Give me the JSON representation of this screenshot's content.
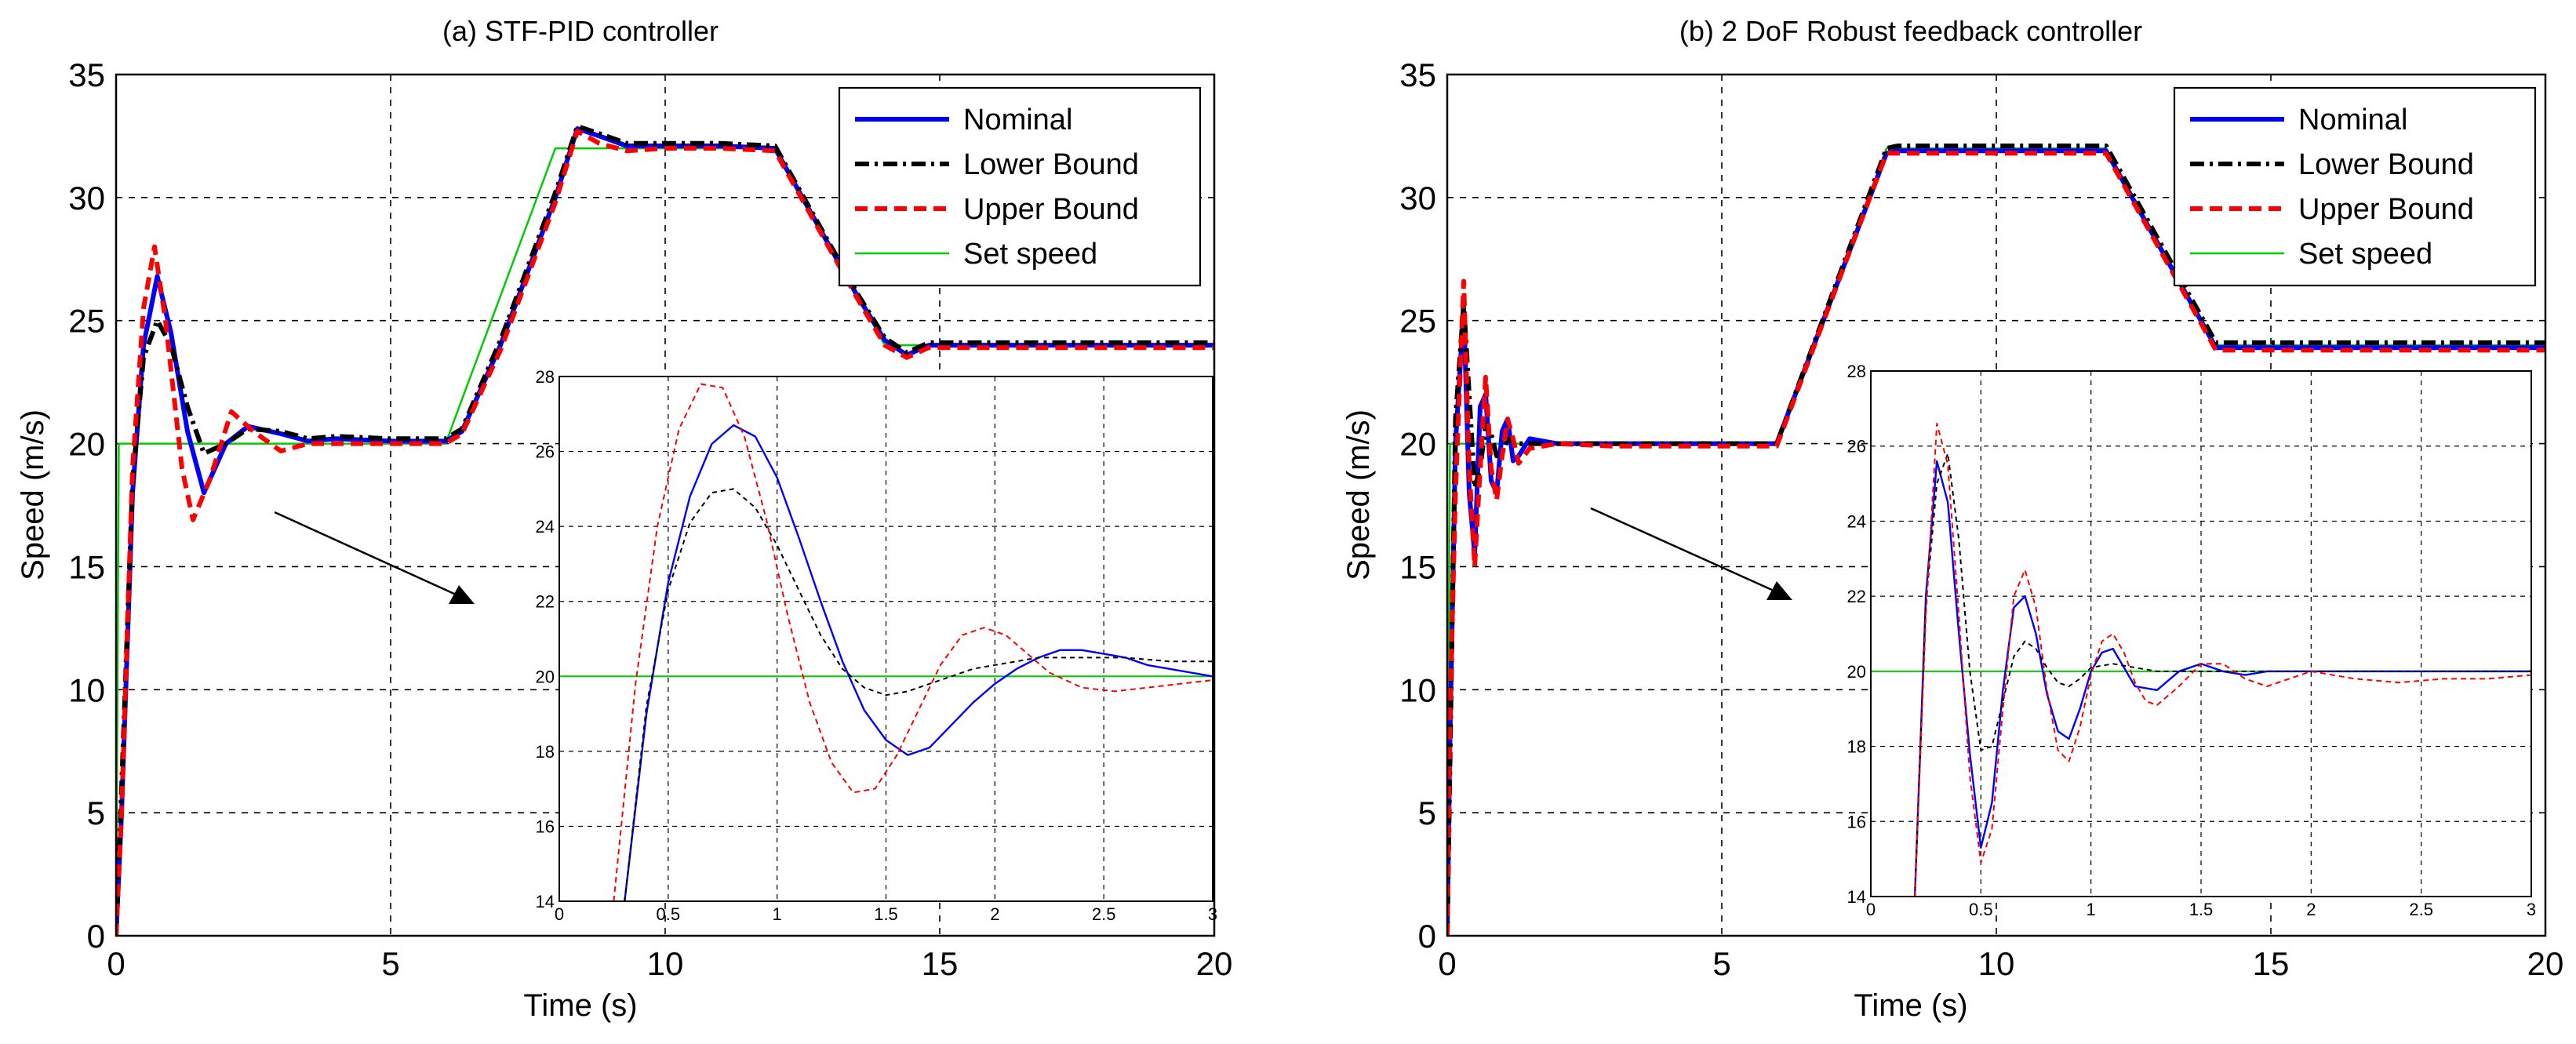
{
  "colors": {
    "Nominal": "#0000ff",
    "Lower Bound": "#000000",
    "Upper Bound": "#ff0000",
    "Set speed": "#00cc00"
  },
  "chart_data": [
    {
      "type": "line",
      "title": "(a) STF-PID controller",
      "xlabel": "Time (s)",
      "ylabel": "Speed (m/s)",
      "xlim": [
        0,
        20
      ],
      "ylim": [
        0,
        35
      ],
      "xticks": [
        0,
        5,
        10,
        15,
        20
      ],
      "yticks": [
        0,
        5,
        10,
        15,
        20,
        25,
        30,
        35
      ],
      "grid": true,
      "legend": "top-right",
      "legend_entries": [
        "Nominal",
        "Lower Bound",
        "Upper Bound",
        "Set speed"
      ],
      "series": [
        {
          "name": "Set speed",
          "x": [
            0,
            0.05,
            6,
            8,
            12,
            14,
            20
          ],
          "y": [
            0,
            20,
            20,
            32,
            32,
            24,
            24
          ]
        },
        {
          "name": "Nominal",
          "x": [
            0,
            0.1,
            0.3,
            0.5,
            0.75,
            1.0,
            1.3,
            1.6,
            2.0,
            2.4,
            3.0,
            3.5,
            4,
            5,
            6,
            6.3,
            7,
            8,
            8.4,
            8.8,
            9.3,
            10,
            11,
            12,
            12.5,
            13,
            13.5,
            14,
            14.4,
            14.8,
            15.2,
            16,
            17,
            18,
            20
          ],
          "y": [
            0,
            5,
            18,
            24,
            26.8,
            24.5,
            20.5,
            18,
            20,
            20.7,
            20.4,
            20.1,
            20.2,
            20.1,
            20.1,
            20.5,
            24,
            30,
            32.8,
            32.5,
            32.1,
            32.1,
            32.1,
            32.0,
            30,
            28,
            26,
            24.2,
            23.6,
            24.0,
            24.0,
            24.0,
            24.0,
            24.0,
            24.0
          ]
        },
        {
          "name": "Lower Bound",
          "x": [
            0,
            0.1,
            0.3,
            0.5,
            0.75,
            1.0,
            1.3,
            1.6,
            2.0,
            2.4,
            3.0,
            3.5,
            4,
            5,
            6,
            6.3,
            7,
            8,
            8.4,
            8.8,
            9.3,
            10,
            11,
            12,
            12.5,
            13,
            13.5,
            14,
            14.4,
            14.8,
            15.2,
            16,
            17,
            18,
            20
          ],
          "y": [
            0,
            6,
            18.5,
            23.5,
            25.0,
            24.0,
            21.5,
            19.6,
            20.0,
            20.6,
            20.5,
            20.2,
            20.3,
            20.2,
            20.2,
            20.6,
            24.2,
            30.2,
            32.9,
            32.6,
            32.2,
            32.2,
            32.2,
            32.1,
            30.1,
            28.1,
            26.1,
            24.3,
            23.7,
            24.1,
            24.1,
            24.1,
            24.1,
            24.1,
            24.1
          ]
        },
        {
          "name": "Upper Bound",
          "x": [
            0,
            0.1,
            0.3,
            0.5,
            0.7,
            0.9,
            1.2,
            1.4,
            1.7,
            2.1,
            2.5,
            3.0,
            3.5,
            4,
            5,
            6,
            6.3,
            7,
            8,
            8.4,
            8.8,
            9.3,
            10,
            11,
            12,
            12.5,
            13,
            13.5,
            14,
            14.4,
            14.8,
            15.2,
            16,
            17,
            18,
            20
          ],
          "y": [
            0,
            5,
            19,
            25.5,
            28.0,
            25.0,
            19.0,
            16.9,
            18.5,
            21.3,
            20.5,
            19.7,
            20.0,
            20.0,
            20.0,
            20.0,
            20.4,
            23.8,
            29.8,
            32.7,
            32.2,
            31.9,
            32.0,
            32.0,
            31.9,
            29.9,
            27.9,
            25.9,
            24.0,
            23.5,
            23.9,
            23.9,
            23.9,
            23.9,
            23.9,
            23.9
          ]
        }
      ],
      "inset": {
        "xlim": [
          0,
          3
        ],
        "ylim": [
          14,
          28
        ],
        "xticks": [
          "0",
          "0.5",
          "1",
          "1.5",
          "2",
          "2.5",
          "3"
        ],
        "yticks": [
          "14",
          "16",
          "18",
          "20",
          "22",
          "24",
          "26",
          "28"
        ],
        "series": [
          {
            "name": "Set speed",
            "x": [
              0,
              3
            ],
            "y": [
              20,
              20
            ]
          },
          {
            "name": "Nominal",
            "x": [
              0.3,
              0.4,
              0.5,
              0.6,
              0.7,
              0.8,
              0.9,
              1.0,
              1.1,
              1.2,
              1.3,
              1.4,
              1.5,
              1.6,
              1.7,
              1.8,
              1.9,
              2.0,
              2.1,
              2.2,
              2.3,
              2.4,
              2.5,
              2.6,
              2.7,
              2.8,
              2.9,
              3.0
            ],
            "y": [
              14,
              19,
              22.5,
              24.8,
              26.2,
              26.7,
              26.4,
              25.3,
              23.7,
              22.0,
              20.4,
              19.1,
              18.3,
              17.9,
              18.1,
              18.7,
              19.3,
              19.8,
              20.2,
              20.5,
              20.7,
              20.7,
              20.6,
              20.5,
              20.3,
              20.2,
              20.1,
              20.0
            ]
          },
          {
            "name": "Lower Bound",
            "x": [
              0.3,
              0.4,
              0.5,
              0.6,
              0.7,
              0.8,
              0.9,
              1.0,
              1.1,
              1.2,
              1.3,
              1.4,
              1.5,
              1.6,
              1.7,
              1.8,
              1.9,
              2.0,
              2.2,
              2.4,
              2.6,
              2.8,
              3.0
            ],
            "y": [
              14,
              19.2,
              22.3,
              24.1,
              24.9,
              25.0,
              24.5,
              23.5,
              22.3,
              21.1,
              20.2,
              19.7,
              19.5,
              19.6,
              19.8,
              20.0,
              20.2,
              20.3,
              20.5,
              20.5,
              20.5,
              20.4,
              20.4
            ]
          },
          {
            "name": "Upper Bound",
            "x": [
              0.25,
              0.35,
              0.45,
              0.55,
              0.65,
              0.75,
              0.85,
              0.95,
              1.05,
              1.15,
              1.25,
              1.35,
              1.45,
              1.55,
              1.65,
              1.75,
              1.85,
              1.95,
              2.05,
              2.15,
              2.25,
              2.4,
              2.55,
              2.7,
              2.85,
              3.0
            ],
            "y": [
              14,
              19.8,
              24.0,
              26.6,
              27.8,
              27.7,
              26.4,
              24.2,
              21.6,
              19.3,
              17.7,
              16.9,
              17.0,
              17.9,
              19.1,
              20.3,
              21.1,
              21.3,
              21.1,
              20.6,
              20.1,
              19.7,
              19.6,
              19.7,
              19.8,
              19.9
            ]
          }
        ]
      }
    },
    {
      "type": "line",
      "title": "(b) 2 DoF Robust feedback controller",
      "xlabel": "Time (s)",
      "ylabel": "Speed (m/s)",
      "xlim": [
        0,
        20
      ],
      "ylim": [
        0,
        35
      ],
      "xticks": [
        0,
        5,
        10,
        15,
        20
      ],
      "yticks": [
        0,
        5,
        10,
        15,
        20,
        25,
        30,
        35
      ],
      "grid": true,
      "legend": "top-right",
      "legend_entries": [
        "Nominal",
        "Lower Bound",
        "Upper Bound",
        "Set speed"
      ],
      "series": [
        {
          "name": "Set speed",
          "x": [
            0,
            0.05,
            6,
            8,
            12,
            14,
            20
          ],
          "y": [
            0,
            20,
            20,
            32,
            32,
            24,
            24
          ]
        },
        {
          "name": "Nominal",
          "x": [
            0,
            0.05,
            0.15,
            0.3,
            0.4,
            0.5,
            0.6,
            0.7,
            0.8,
            0.9,
            1.0,
            1.1,
            1.2,
            1.3,
            1.5,
            2,
            3,
            4,
            5,
            6,
            8,
            8.2,
            12,
            14,
            20
          ],
          "y": [
            0,
            8,
            20,
            25.5,
            18,
            15.5,
            21.5,
            22,
            18.5,
            18,
            20.5,
            21,
            19.3,
            19.5,
            20.2,
            20.0,
            20.0,
            20.0,
            20.0,
            20.0,
            31.8,
            31.9,
            31.9,
            23.9,
            23.9
          ]
        },
        {
          "name": "Lower Bound",
          "x": [
            0,
            0.05,
            0.15,
            0.3,
            0.4,
            0.5,
            0.6,
            0.7,
            0.8,
            0.9,
            1.0,
            1.1,
            1.2,
            1.3,
            1.5,
            2,
            3,
            4,
            5,
            6,
            8,
            8.2,
            12,
            14,
            20
          ],
          "y": [
            0,
            7,
            21,
            25.7,
            22,
            18.2,
            19.0,
            20.8,
            20.4,
            19.5,
            19.6,
            20.2,
            20.1,
            20.0,
            20.0,
            20.0,
            20.0,
            20.0,
            20.0,
            20.0,
            32.0,
            32.1,
            32.1,
            24.1,
            24.1
          ]
        },
        {
          "name": "Upper Bound",
          "x": [
            0,
            0.05,
            0.15,
            0.3,
            0.4,
            0.5,
            0.6,
            0.7,
            0.8,
            0.9,
            1.0,
            1.1,
            1.2,
            1.3,
            1.5,
            2,
            3,
            4,
            5,
            6,
            8,
            8.2,
            12,
            14,
            20
          ],
          "y": [
            0,
            9,
            18,
            26.6,
            19,
            15.0,
            19.0,
            22.7,
            19,
            17.7,
            19.5,
            21.0,
            20.2,
            19.2,
            19.8,
            20.0,
            19.9,
            19.9,
            19.9,
            19.9,
            31.8,
            31.8,
            31.8,
            23.8,
            23.8
          ]
        }
      ],
      "inset": {
        "xlim": [
          0,
          3
        ],
        "ylim": [
          14,
          28
        ],
        "xticks": [
          "0",
          "0.5",
          "1",
          "1.5",
          "2",
          "2.5",
          "3"
        ],
        "yticks": [
          "14",
          "16",
          "18",
          "20",
          "22",
          "24",
          "26",
          "28"
        ],
        "series": [
          {
            "name": "Set speed",
            "x": [
              0,
              3
            ],
            "y": [
              20,
              20
            ]
          },
          {
            "name": "Nominal",
            "x": [
              0.2,
              0.25,
              0.3,
              0.35,
              0.4,
              0.45,
              0.5,
              0.55,
              0.6,
              0.65,
              0.7,
              0.75,
              0.8,
              0.85,
              0.9,
              0.95,
              1.0,
              1.05,
              1.1,
              1.15,
              1.2,
              1.3,
              1.4,
              1.5,
              1.6,
              1.7,
              1.8,
              1.9,
              2.0,
              2.2,
              2.4,
              2.6,
              2.8,
              3.0
            ],
            "y": [
              14,
              22,
              25.6,
              24.5,
              21,
              17.8,
              15.3,
              16.5,
              19.5,
              21.7,
              22.0,
              21.0,
              19.4,
              18.4,
              18.2,
              19.0,
              20.0,
              20.5,
              20.6,
              20.1,
              19.6,
              19.5,
              20.0,
              20.2,
              20.0,
              19.9,
              20.0,
              20.0,
              20.0,
              20.0,
              20.0,
              20.0,
              20.0,
              20.0
            ]
          },
          {
            "name": "Lower Bound",
            "x": [
              0.2,
              0.25,
              0.3,
              0.35,
              0.4,
              0.45,
              0.5,
              0.55,
              0.6,
              0.65,
              0.7,
              0.75,
              0.8,
              0.85,
              0.9,
              0.95,
              1.0,
              1.1,
              1.2,
              1.3,
              1.5,
              1.7,
              2.0,
              2.5,
              3.0
            ],
            "y": [
              14,
              21.8,
              25.0,
              25.8,
              23.5,
              20.0,
              17.9,
              18.0,
              19.2,
              20.4,
              20.8,
              20.6,
              20.1,
              19.7,
              19.6,
              19.8,
              20.1,
              20.2,
              20.1,
              20.0,
              20.0,
              20.0,
              20.0,
              20.0,
              20.0
            ]
          },
          {
            "name": "Upper Bound",
            "x": [
              0.2,
              0.25,
              0.3,
              0.35,
              0.4,
              0.45,
              0.5,
              0.55,
              0.6,
              0.65,
              0.7,
              0.75,
              0.8,
              0.85,
              0.9,
              0.95,
              1.0,
              1.05,
              1.1,
              1.15,
              1.2,
              1.25,
              1.3,
              1.4,
              1.5,
              1.6,
              1.7,
              1.8,
              1.9,
              2.0,
              2.2,
              2.4,
              2.6,
              2.8,
              3.0
            ],
            "y": [
              14,
              21.5,
              26.6,
              25.5,
              21.5,
              17.2,
              14.9,
              15.8,
              19.0,
              22.0,
              22.7,
              21.7,
              19.5,
              17.9,
              17.6,
              18.5,
              19.9,
              20.8,
              21.0,
              20.5,
              19.7,
              19.2,
              19.1,
              19.6,
              20.2,
              20.2,
              19.8,
              19.6,
              19.8,
              20.0,
              19.8,
              19.7,
              19.8,
              19.8,
              19.9
            ]
          }
        ]
      }
    }
  ]
}
